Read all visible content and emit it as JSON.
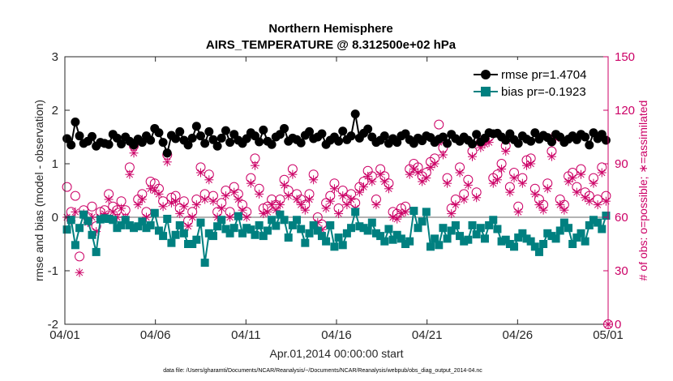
{
  "chart_data": {
    "type": "line",
    "title": "Northern Hemisphere",
    "subtitle": "AIRS_TEMPERATURE @ 8.312500e+02 hPa",
    "xlabel": "Apr.01,2014 00:00:00 start",
    "ylabel": "rmse and bias (model - observation)",
    "y2label": "# of obs: o=possible; ∗=assimilated",
    "xlim": [
      0,
      30
    ],
    "ylim": [
      -2,
      3
    ],
    "y2lim": [
      0,
      150
    ],
    "x_ticks": [
      0,
      5,
      10,
      15,
      20,
      25,
      30
    ],
    "x_tick_labels": [
      "04/01",
      "04/06",
      "04/11",
      "04/16",
      "04/21",
      "04/26",
      "05/01"
    ],
    "y_ticks": [
      -2,
      -1,
      0,
      1,
      2,
      3
    ],
    "y_tick_labels": [
      "-2",
      "-1",
      "0",
      "1",
      "2",
      "3"
    ],
    "y2_ticks": [
      0,
      30,
      60,
      90,
      120,
      150
    ],
    "y2_tick_labels": [
      "0",
      "30",
      "60",
      "90",
      "120",
      "150"
    ],
    "legend_position": "top-right",
    "footnote": "data file: /Users/gharamti/Documents/NCAR/Reanalysis/~/Documents/NCAR/Reanalysis/webpub/obs_diag_output_2014-04.nc",
    "colors": {
      "rmse": "#000000",
      "bias": "#008080",
      "obs": "#cc0066",
      "zero_line": "#b3b3b3"
    },
    "series": [
      {
        "name": "rmse pr=1.4704",
        "axis": "left",
        "marker": "circle",
        "values": [
          1.47,
          1.35,
          1.78,
          1.52,
          1.38,
          1.42,
          1.51,
          1.33,
          1.4,
          1.38,
          1.36,
          1.55,
          1.48,
          1.37,
          1.5,
          1.42,
          1.35,
          1.46,
          1.4,
          1.52,
          1.44,
          1.66,
          1.58,
          1.4,
          1.2,
          1.53,
          1.47,
          1.6,
          1.44,
          1.35,
          1.48,
          1.7,
          1.52,
          1.38,
          1.6,
          1.45,
          1.33,
          1.48,
          1.62,
          1.4,
          1.55,
          1.44,
          1.38,
          1.47,
          1.58,
          1.52,
          1.41,
          1.63,
          1.42,
          1.36,
          1.5,
          1.55,
          1.66,
          1.42,
          1.48,
          1.45,
          1.39,
          1.53,
          1.6,
          1.47,
          1.5,
          1.56,
          1.36,
          1.44,
          1.5,
          1.42,
          1.61,
          1.45,
          1.52,
          1.93,
          1.48,
          1.57,
          1.65,
          1.5,
          1.4,
          1.44,
          1.52,
          1.38,
          1.47,
          1.4,
          1.52,
          1.56,
          1.45,
          1.38,
          1.48,
          1.43,
          1.52,
          1.49,
          1.4,
          1.46,
          1.5,
          1.38,
          1.55,
          1.47,
          1.42,
          1.5,
          1.44,
          1.37,
          1.55,
          1.41,
          1.48,
          1.58,
          1.56,
          1.57,
          1.5,
          1.44,
          1.56,
          1.45,
          1.38,
          1.52,
          1.46,
          1.42,
          1.58,
          1.46,
          1.53,
          1.49,
          1.41,
          1.55,
          1.5,
          1.4,
          1.46,
          1.52,
          1.45,
          1.55,
          1.5,
          1.35,
          1.58,
          1.47,
          1.55,
          1.44
        ]
      },
      {
        "name": "bias pr=-0.1923",
        "axis": "left",
        "marker": "square",
        "values": [
          -0.23,
          -0.05,
          -0.52,
          -0.2,
          0.05,
          -0.07,
          -0.33,
          -0.65,
          -0.04,
          -0.02,
          -0.03,
          -0.05,
          -0.2,
          -0.15,
          -0.05,
          -0.15,
          -0.2,
          -0.17,
          -0.08,
          -0.2,
          -0.15,
          0.08,
          -0.25,
          -0.35,
          -0.03,
          -0.48,
          -0.33,
          -0.15,
          -0.3,
          -0.5,
          -0.5,
          -0.42,
          -0.1,
          -0.85,
          -0.3,
          -0.35,
          -0.17,
          -0.05,
          -0.22,
          -0.3,
          -0.2,
          0.02,
          -0.3,
          -0.2,
          -0.23,
          -0.33,
          -0.15,
          -0.35,
          -0.25,
          -0.05,
          -0.16,
          0.05,
          -0.05,
          -0.38,
          -0.15,
          -0.05,
          -0.22,
          -0.48,
          -0.3,
          -0.15,
          -0.25,
          -0.35,
          -0.45,
          -0.15,
          -0.55,
          -0.38,
          -0.52,
          -0.3,
          -0.2,
          0.1,
          -0.17,
          -0.2,
          -0.25,
          -0.1,
          -0.3,
          -0.35,
          -0.45,
          -0.22,
          -0.42,
          -0.33,
          -0.4,
          -0.5,
          -0.45,
          0.12,
          -0.2,
          -0.08,
          0.1,
          -0.55,
          -0.4,
          -0.52,
          -0.2,
          -0.4,
          -0.25,
          -0.15,
          -0.35,
          -0.45,
          -0.42,
          -0.15,
          -0.32,
          -0.2,
          -0.4,
          -0.15,
          -0.05,
          -0.22,
          -0.45,
          -0.42,
          -0.5,
          -0.55,
          -0.38,
          -0.3,
          -0.4,
          -0.45,
          -0.55,
          -0.65,
          -0.5,
          -0.3,
          -0.35,
          -0.4,
          -0.25,
          -0.1,
          -0.2,
          -0.5,
          -0.38,
          -0.3,
          -0.45,
          -0.15,
          -0.05,
          -0.1,
          -0.22,
          0.03
        ]
      },
      {
        "name": "# obs possible",
        "axis": "right",
        "marker": "open-circle",
        "values": [
          77,
          63,
          72,
          38,
          64,
          60,
          66,
          55,
          63,
          64,
          73,
          66,
          64,
          69,
          64,
          88,
          100,
          70,
          73,
          63,
          80,
          79,
          76,
          69,
          95,
          71,
          72,
          65,
          69,
          58,
          63,
          70,
          88,
          73,
          84,
          72,
          63,
          68,
          75,
          63,
          77,
          73,
          67,
          63,
          82,
          93,
          76,
          65,
          66,
          70,
          67,
          70,
          81,
          75,
          87,
          73,
          70,
          67,
          73,
          84,
          60,
          56,
          68,
          72,
          79,
          65,
          75,
          70,
          73,
          68,
          77,
          80,
          86,
          83,
          70,
          87,
          83,
          79,
          63,
          62,
          65,
          66,
          87,
          90,
          88,
          83,
          85,
          91,
          93,
          112,
          99,
          82,
          65,
          70,
          88,
          73,
          81,
          97,
          74,
          102,
          104,
          105,
          82,
          84,
          90,
          100,
          77,
          85,
          66,
          82,
          92,
          93,
          76,
          70,
          67,
          79,
          97,
          106,
          70,
          67,
          83,
          85,
          77,
          87,
          74,
          72,
          82,
          70,
          88,
          72
        ]
      },
      {
        "name": "# obs assimilated",
        "axis": "right",
        "marker": "asterisk",
        "values": [
          60,
          58,
          63,
          29,
          62,
          57,
          60,
          52,
          60,
          62,
          70,
          63,
          60,
          65,
          60,
          84,
          96,
          67,
          70,
          60,
          76,
          75,
          73,
          66,
          91,
          68,
          69,
          62,
          66,
          55,
          60,
          67,
          85,
          70,
          81,
          69,
          60,
          65,
          72,
          60,
          74,
          70,
          64,
          60,
          79,
          89,
          73,
          62,
          63,
          67,
          64,
          67,
          78,
          72,
          84,
          70,
          67,
          64,
          70,
          81,
          57,
          53,
          65,
          69,
          76,
          62,
          72,
          67,
          70,
          65,
          74,
          77,
          83,
          80,
          67,
          84,
          80,
          76,
          60,
          59,
          62,
          63,
          84,
          87,
          85,
          80,
          82,
          88,
          90,
          102,
          95,
          79,
          62,
          67,
          85,
          70,
          78,
          94,
          71,
          99,
          101,
          102,
          79,
          81,
          87,
          97,
          74,
          82,
          63,
          79,
          89,
          90,
          73,
          67,
          64,
          76,
          94,
          104,
          67,
          64,
          80,
          82,
          74,
          84,
          71,
          69,
          79,
          67,
          85,
          69
        ]
      }
    ]
  }
}
